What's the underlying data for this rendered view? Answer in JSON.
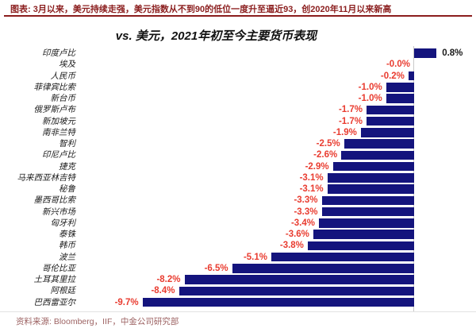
{
  "header": {
    "note": "图表: 3月以来，美元持续走强，美元指数从不到90的低位一度升至逼近93，创2020年11月以来新高"
  },
  "chart_data": {
    "type": "bar",
    "orientation": "horizontal",
    "title": "vs. 美元，2021年初至今主要货币表现",
    "categories": [
      "印度卢比",
      "埃及",
      "人民币",
      "菲律宾比索",
      "新台币",
      "俄罗斯卢布",
      "新加坡元",
      "南非兰特",
      "智利",
      "印尼卢比",
      "捷克",
      "马来西亚林吉特",
      "秘鲁",
      "墨西哥比索",
      "新兴市场",
      "匈牙利",
      "泰铢",
      "韩币",
      "波兰",
      "哥伦比亚",
      "土耳其里拉",
      "阿根廷",
      "巴西雷亚尔"
    ],
    "values": [
      0.8,
      -0.0,
      -0.2,
      -1.0,
      -1.0,
      -1.7,
      -1.7,
      -1.9,
      -2.5,
      -2.6,
      -2.9,
      -3.1,
      -3.1,
      -3.3,
      -3.3,
      -3.4,
      -3.6,
      -3.8,
      -5.1,
      -6.5,
      -8.2,
      -8.4,
      -9.7
    ],
    "value_labels": [
      "0.8%",
      "-0.0%",
      "-0.2%",
      "-1.0%",
      "-1.0%",
      "-1.7%",
      "-1.7%",
      "-1.9%",
      "-2.5%",
      "-2.6%",
      "-2.9%",
      "-3.1%",
      "-3.1%",
      "-3.3%",
      "-3.3%",
      "-3.4%",
      "-3.6%",
      "-3.8%",
      "-5.1%",
      "-6.5%",
      "-8.2%",
      "-8.4%",
      "-9.7%"
    ],
    "unit": "%",
    "xlim": [
      -10.5,
      2.2
    ],
    "grid": false,
    "legend": false
  },
  "colors": {
    "bar": "#14147d",
    "negative_value_label": "#e93c30",
    "positive_value_label": "#1a1a1a",
    "header_text": "#8b1e1e",
    "footer_text": "#9d6363",
    "axis_line": "#c9c9c9"
  },
  "footer": {
    "source": "资料来源: Bloomberg，IIF，中金公司研究部"
  }
}
